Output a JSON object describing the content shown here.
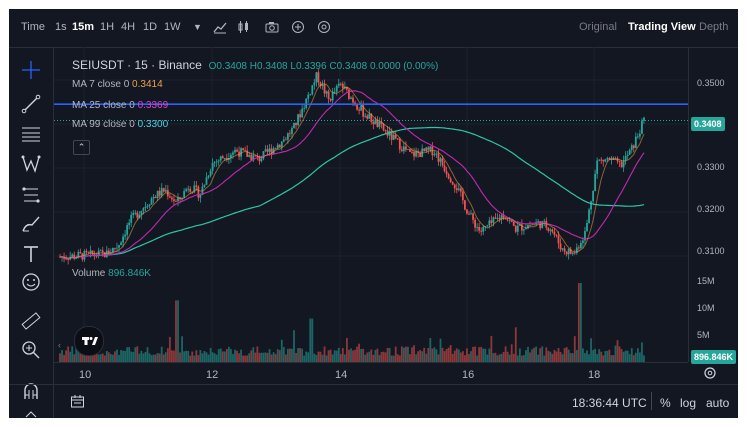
{
  "topbar": {
    "time_label": "Time",
    "intervals": [
      {
        "label": "1s",
        "active": false
      },
      {
        "label": "15m",
        "active": true
      },
      {
        "label": "1H",
        "active": false
      },
      {
        "label": "4H",
        "active": false
      },
      {
        "label": "1D",
        "active": false
      },
      {
        "label": "1W",
        "active": false
      }
    ],
    "views": [
      {
        "label": "Original",
        "active": false
      },
      {
        "label": "Trading View",
        "active": true
      },
      {
        "label": "Depth",
        "active": false
      }
    ]
  },
  "legend": {
    "symbol": "SEIUSDT · 15 · Binance",
    "open_label": "O",
    "open": "0.3408",
    "high_label": "H",
    "high": "0.3408",
    "low_label": "L",
    "low": "0.3396",
    "close_label": "C",
    "close": "0.3408",
    "change": "0.0000 (0.00%)",
    "ma7_label": "MA 7 close 0",
    "ma7_value": "0.3414",
    "ma25_label": "MA 25 close 0",
    "ma25_value": "0.3369",
    "ma99_label": "MA 99 close 0",
    "ma99_value": "0.3300",
    "volume_label": "Volume",
    "volume_value": "896.846K"
  },
  "price_axis": {
    "ticks": [
      "0.3500",
      "0.3300",
      "0.3200",
      "0.3100"
    ],
    "current_price": "0.3408",
    "volume_ticks": [
      "15M",
      "10M",
      "5M"
    ],
    "current_volume": "896.846K"
  },
  "time_axis": {
    "ticks": [
      "10",
      "12",
      "14",
      "16",
      "18"
    ]
  },
  "bottombar": {
    "clock": "18:36:44 UTC",
    "percent": "%",
    "log": "log",
    "auto": "auto"
  },
  "colors": {
    "background": "#131722",
    "up": "#26a69a",
    "down": "#ef5350",
    "ma7": "#f0a04b",
    "ma25": "#c02bb0",
    "ma99": "#2bc7a8",
    "hline": "#2962ff"
  },
  "chart_data": {
    "type": "candlestick",
    "x_ticks": [
      "10",
      "12",
      "14",
      "16",
      "18"
    ],
    "ylim": [
      0.3075,
      0.3575
    ],
    "y_ticks": [
      0.35,
      0.33,
      0.32,
      0.31
    ],
    "horizontal_line": 0.3445,
    "close_path": [
      {
        "x": 0.0,
        "y": 0.3098
      },
      {
        "x": 0.05,
        "y": 0.3102
      },
      {
        "x": 0.08,
        "y": 0.3105
      },
      {
        "x": 0.1,
        "y": 0.3125
      },
      {
        "x": 0.12,
        "y": 0.318
      },
      {
        "x": 0.16,
        "y": 0.3235
      },
      {
        "x": 0.18,
        "y": 0.325
      },
      {
        "x": 0.2,
        "y": 0.322
      },
      {
        "x": 0.22,
        "y": 0.326
      },
      {
        "x": 0.24,
        "y": 0.324
      },
      {
        "x": 0.26,
        "y": 0.331
      },
      {
        "x": 0.3,
        "y": 0.334
      },
      {
        "x": 0.34,
        "y": 0.332
      },
      {
        "x": 0.38,
        "y": 0.336
      },
      {
        "x": 0.4,
        "y": 0.339
      },
      {
        "x": 0.44,
        "y": 0.351
      },
      {
        "x": 0.46,
        "y": 0.3455
      },
      {
        "x": 0.48,
        "y": 0.349
      },
      {
        "x": 0.52,
        "y": 0.3425
      },
      {
        "x": 0.56,
        "y": 0.338
      },
      {
        "x": 0.6,
        "y": 0.333
      },
      {
        "x": 0.64,
        "y": 0.334
      },
      {
        "x": 0.68,
        "y": 0.3255
      },
      {
        "x": 0.7,
        "y": 0.3195
      },
      {
        "x": 0.72,
        "y": 0.3155
      },
      {
        "x": 0.74,
        "y": 0.3175
      },
      {
        "x": 0.76,
        "y": 0.3195
      },
      {
        "x": 0.78,
        "y": 0.3162
      },
      {
        "x": 0.8,
        "y": 0.317
      },
      {
        "x": 0.82,
        "y": 0.3175
      },
      {
        "x": 0.84,
        "y": 0.3165
      },
      {
        "x": 0.86,
        "y": 0.3115
      },
      {
        "x": 0.88,
        "y": 0.3105
      },
      {
        "x": 0.9,
        "y": 0.3155
      },
      {
        "x": 0.92,
        "y": 0.3315
      },
      {
        "x": 0.94,
        "y": 0.332
      },
      {
        "x": 0.96,
        "y": 0.3305
      },
      {
        "x": 0.98,
        "y": 0.3345
      },
      {
        "x": 1.0,
        "y": 0.3408
      }
    ]
  }
}
